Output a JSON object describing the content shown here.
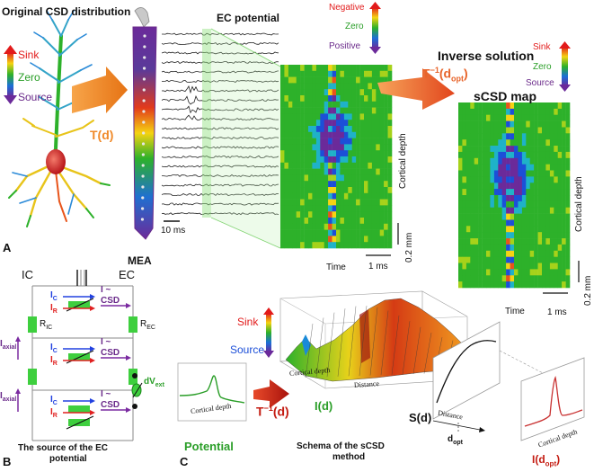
{
  "panelA": {
    "letter": "A",
    "title": "Original CSD distribution",
    "scale_sink": "Sink",
    "scale_zero": "Zero",
    "scale_source": "Source",
    "transform_label": "T(d)",
    "mea_label": "MEA",
    "ec_title": "EC potential",
    "ec_neg": "Negative",
    "ec_zero": "Zero",
    "ec_pos": "Positive",
    "time_scale": "10 ms",
    "inverse_title": "Inverse solution",
    "inverse_formula_main": "T",
    "inverse_formula_sup": "−1",
    "inverse_formula_arg": "(d",
    "inverse_formula_sub": "opt",
    "inverse_formula_close": ")",
    "scsd_title": "sCSD map",
    "scsd_sink": "Sink",
    "scsd_zero": "Zero",
    "scsd_source": "Source",
    "cortical_depth_1": "Cortical depth",
    "cortical_depth_2": "Cortical depth",
    "time_1": "Time",
    "time_2": "Time",
    "ms_1": "1 ms",
    "ms_2": "1 ms",
    "mm_1": "0.2 mm",
    "mm_2": "0.2 mm"
  },
  "panelB": {
    "letter": "B",
    "ic": "IC",
    "ec": "EC",
    "ic_sym": "I",
    "ic_sub": "C",
    "ir_sym": "I",
    "ir_sub": "R",
    "csd_approx": "I ~",
    "csd": "CSD",
    "r_ic": "R",
    "r_ic_sub": "IC",
    "r_ec": "R",
    "r_ec_sub": "EC",
    "i_axial": "I",
    "i_axial_sub": "axial",
    "dv": "dV",
    "dv_sub": "ext",
    "caption_line1": "The source of the EC",
    "caption_line2": "potential"
  },
  "panelC": {
    "letter": "C",
    "sink": "Sink",
    "source": "Source",
    "cortical_depth_3d": "Cortical depth",
    "distance_3d": "Distance",
    "id_label": "I(d)",
    "potential_axis": "Cortical depth",
    "potential_label": "Potential",
    "tinv_main": "T",
    "tinv_sup": "−1",
    "tinv_arg": "(d)",
    "sd_label": "S(d)",
    "distance_label": "Distance",
    "dopt_main": "d",
    "dopt_sub": "opt",
    "idopt_main": "I(d",
    "idopt_sub": "opt",
    "idopt_close": ")",
    "cortical_depth_small": "Cortical depth",
    "schema_line1": "Schema of the sCSD",
    "schema_line2": "method"
  },
  "colors": {
    "arrow_orange": "#f08a2a",
    "inverse_orange": "#e8642a",
    "tinv_red": "#c41c12",
    "green": "#2a9e28",
    "purple": "#6a2a8a",
    "plot_green": "#2a9e28",
    "plot_red": "#c83030"
  }
}
